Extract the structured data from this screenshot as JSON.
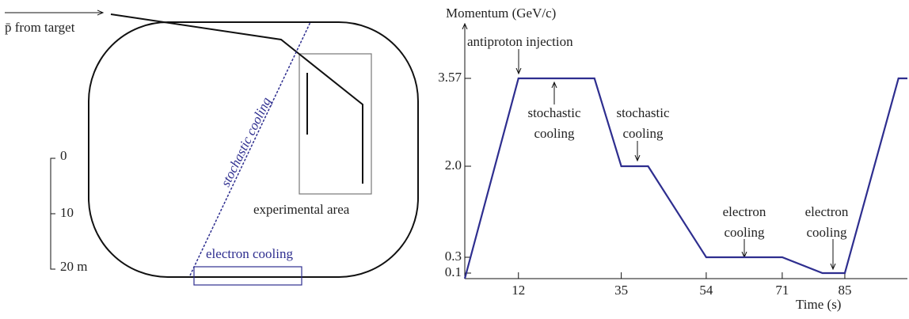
{
  "diagram": {
    "injection_label": "p̄ from target",
    "stochastic_label": "stochastic cooling",
    "experimental_label": "experimental area",
    "electron_label": "electron cooling",
    "scale": [
      "0",
      "10",
      "20 m"
    ]
  },
  "chart_data": {
    "type": "line",
    "ylabel": "Momentum (GeV/c)",
    "xlabel": "Time (s)",
    "x": [
      0,
      12,
      29,
      35,
      41,
      54,
      71,
      80,
      85,
      97,
      99
    ],
    "values": [
      0,
      3.57,
      3.57,
      2.0,
      2.0,
      0.3,
      0.3,
      0.1,
      0.1,
      3.57,
      3.57
    ],
    "color": "#2e2e8f",
    "xlim": [
      0,
      99
    ],
    "ylim": [
      0,
      4
    ],
    "xticks": [
      12,
      35,
      54,
      71,
      85
    ],
    "yticks": [
      0.1,
      0.3,
      {
        "value": 2.0,
        "label": "2.0"
      },
      3.57
    ],
    "annotations": [
      {
        "lines": [
          "antiproton injection"
        ]
      },
      {
        "lines": [
          "stochastic",
          "cooling"
        ]
      },
      {
        "lines": [
          "stochastic",
          "cooling"
        ]
      },
      {
        "lines": [
          "electron",
          "cooling"
        ]
      },
      {
        "lines": [
          "electron",
          "cooling"
        ]
      }
    ]
  }
}
